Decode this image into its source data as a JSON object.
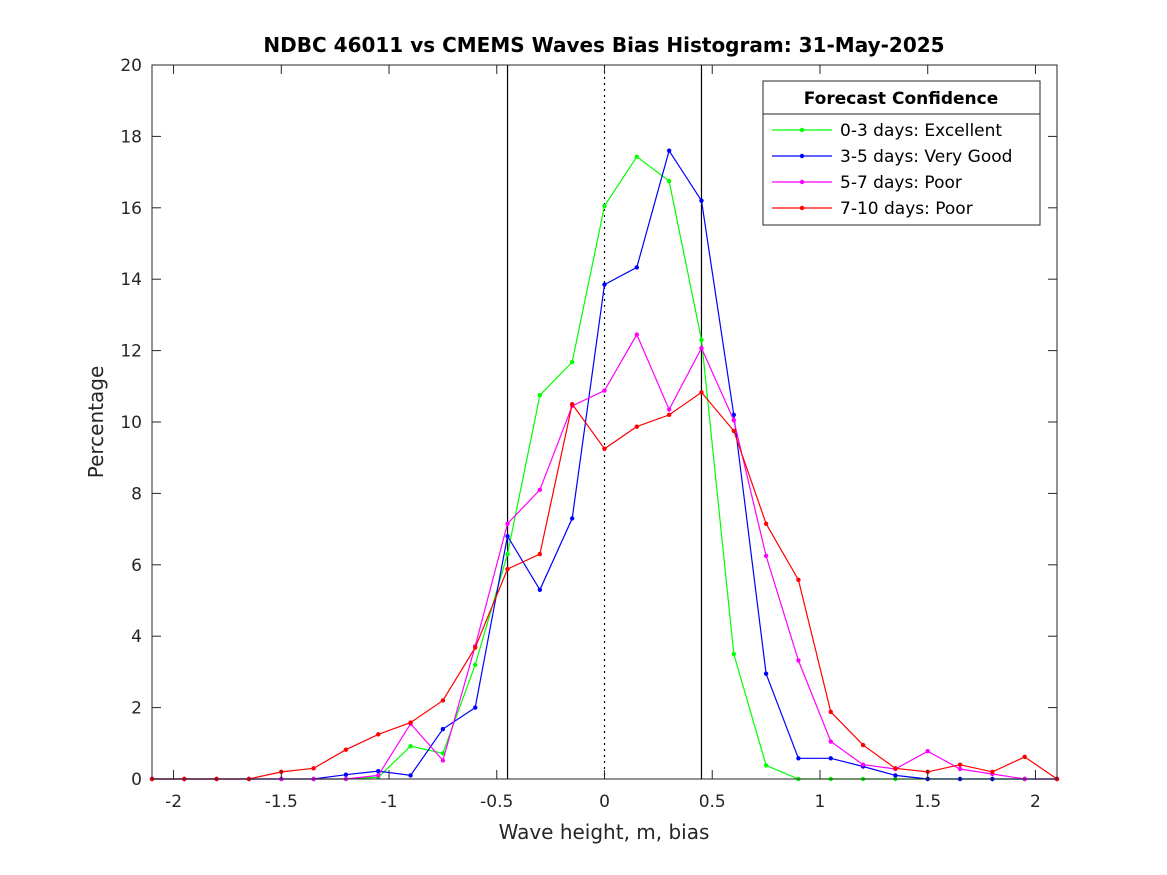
{
  "chart_data": {
    "type": "line",
    "title": "NDBC 46011 vs CMEMS Waves Bias Histogram: 31-May-2025",
    "xlabel": "Wave height, m, bias",
    "ylabel": "Percentage",
    "xlim": [
      -2.1,
      2.1
    ],
    "ylim": [
      0,
      20
    ],
    "xticks": [
      -2,
      -1.5,
      -1,
      -0.5,
      0,
      0.5,
      1,
      1.5,
      2
    ],
    "xtick_labels": [
      "-2",
      "-1.5",
      "-1",
      "-0.5",
      "0",
      "0.5",
      "1",
      "1.5",
      "2"
    ],
    "yticks": [
      0,
      2,
      4,
      6,
      8,
      10,
      12,
      14,
      16,
      18,
      20
    ],
    "ytick_labels": [
      "0",
      "2",
      "4",
      "6",
      "8",
      "10",
      "12",
      "14",
      "16",
      "18",
      "20"
    ],
    "grid": false,
    "legend_title": "Forecast Confidence",
    "legend_position": "top-right",
    "vertical_lines": [
      {
        "x": -0.45,
        "style": "solid",
        "color": "#000000"
      },
      {
        "x": 0,
        "style": "dotted",
        "color": "#000000"
      },
      {
        "x": 0.45,
        "style": "solid",
        "color": "#000000"
      }
    ],
    "x": [
      -2.1,
      -1.95,
      -1.8,
      -1.65,
      -1.5,
      -1.35,
      -1.2,
      -1.05,
      -0.9,
      -0.75,
      -0.6,
      -0.45,
      -0.3,
      -0.15,
      0,
      0.15,
      0.3,
      0.45,
      0.6,
      0.75,
      0.9,
      1.05,
      1.2,
      1.35,
      1.5,
      1.65,
      1.8,
      1.95,
      2.1
    ],
    "series": [
      {
        "name": "0-3 days: Excellent",
        "color": "#00ff00",
        "values": [
          0,
          0,
          0,
          0,
          0,
          0,
          0,
          0.05,
          0.92,
          0.72,
          3.2,
          6.3,
          10.75,
          11.68,
          16.05,
          17.43,
          16.75,
          12.3,
          3.5,
          0.38,
          0,
          0,
          0,
          0,
          0,
          0,
          0,
          0,
          0
        ]
      },
      {
        "name": "3-5 days: Very Good",
        "color": "#0000ff",
        "values": [
          0,
          0,
          0,
          0,
          0,
          0,
          0.12,
          0.22,
          0.1,
          1.4,
          2.0,
          6.8,
          5.3,
          7.3,
          13.85,
          14.33,
          17.6,
          16.2,
          10.2,
          2.95,
          0.58,
          0.58,
          0.35,
          0.1,
          0,
          0,
          0,
          0,
          0
        ]
      },
      {
        "name": "5-7 days: Poor",
        "color": "#ff00ff",
        "values": [
          0,
          0,
          0,
          0,
          0,
          0,
          0,
          0.1,
          1.55,
          0.52,
          3.72,
          7.15,
          8.1,
          10.45,
          10.88,
          12.45,
          10.35,
          12.07,
          10.05,
          6.25,
          3.32,
          1.05,
          0.4,
          0.28,
          0.78,
          0.28,
          0.14,
          0,
          0
        ]
      },
      {
        "name": "7-10 days: Poor",
        "color": "#ff0000",
        "values": [
          0,
          0,
          0,
          0,
          0.2,
          0.3,
          0.82,
          1.25,
          1.58,
          2.2,
          3.68,
          5.88,
          6.3,
          10.5,
          9.25,
          9.87,
          10.2,
          10.83,
          9.75,
          7.15,
          5.58,
          1.88,
          0.95,
          0.3,
          0.2,
          0.4,
          0.2,
          0.62,
          0
        ]
      }
    ]
  }
}
